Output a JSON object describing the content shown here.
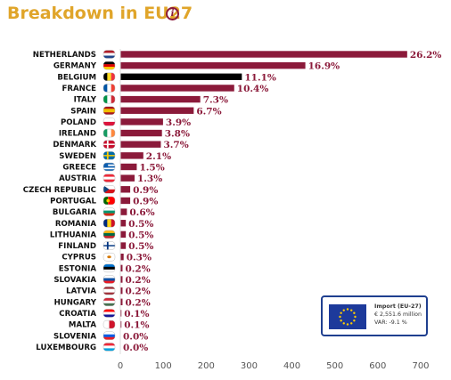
{
  "title": "Breakdown in EU27",
  "info_icon": "info-icon",
  "chart_data": {
    "type": "bar",
    "orientation": "horizontal",
    "categories": [
      "NETHERLANDS",
      "GERMANY",
      "BELGIUM",
      "FRANCE",
      "ITALY",
      "SPAIN",
      "POLAND",
      "IRELAND",
      "DENMARK",
      "SWEDEN",
      "GREECE",
      "AUSTRIA",
      "CZECH REPUBLIC",
      "PORTUGAL",
      "BULGARIA",
      "ROMANIA",
      "LITHUANIA",
      "FINLAND",
      "CYPRUS",
      "ESTONIA",
      "SLOVAKIA",
      "LATVIA",
      "HUNGARY",
      "CROATIA",
      "MALTA",
      "SLOVENIA",
      "LUXEMBOURG"
    ],
    "values": [
      668.5,
      431.2,
      283.2,
      265.4,
      186.3,
      171.0,
      99.5,
      97.0,
      94.4,
      53.6,
      38.3,
      33.2,
      23.0,
      23.0,
      15.3,
      12.8,
      12.8,
      12.8,
      7.7,
      5.1,
      5.1,
      5.1,
      5.1,
      2.6,
      2.6,
      0.0,
      0.0
    ],
    "value_labels": [
      "26.2%",
      "16.9%",
      "11.1%",
      "10.4%",
      "7.3%",
      "6.7%",
      "3.9%",
      "3.8%",
      "3.7%",
      "2.1%",
      "1.5%",
      "1.3%",
      "0.9%",
      "0.9%",
      "0.6%",
      "0.5%",
      "0.5%",
      "0.5%",
      "0.3%",
      "0.2%",
      "0.2%",
      "0.2%",
      "0.2%",
      "0.1%",
      "0.1%",
      "0.0%",
      "0.0%"
    ],
    "highlight_index": 2,
    "colors": {
      "bar": "#8b1a3a",
      "highlight": "#000000",
      "title": "#e0a52a"
    },
    "xlim": [
      0,
      700
    ],
    "xticks": [
      0,
      100,
      200,
      300,
      400,
      500,
      600,
      700
    ],
    "grid": false,
    "flags": [
      "netherlands-flag-icon",
      "germany-flag-icon",
      "belgium-flag-icon",
      "france-flag-icon",
      "italy-flag-icon",
      "spain-flag-icon",
      "poland-flag-icon",
      "ireland-flag-icon",
      "denmark-flag-icon",
      "sweden-flag-icon",
      "greece-flag-icon",
      "austria-flag-icon",
      "czech-republic-flag-icon",
      "portugal-flag-icon",
      "bulgaria-flag-icon",
      "romania-flag-icon",
      "lithuania-flag-icon",
      "finland-flag-icon",
      "cyprus-flag-icon",
      "estonia-flag-icon",
      "slovakia-flag-icon",
      "latvia-flag-icon",
      "hungary-flag-icon",
      "croatia-flag-icon",
      "malta-flag-icon",
      "slovenia-flag-icon",
      "luxembourg-flag-icon"
    ]
  },
  "legend": {
    "flag_icon": "eu-flag-icon",
    "heading": "Import (EU-27)",
    "amount": "€ 2,551.6 million",
    "change": "VAR: -9.1 %"
  }
}
